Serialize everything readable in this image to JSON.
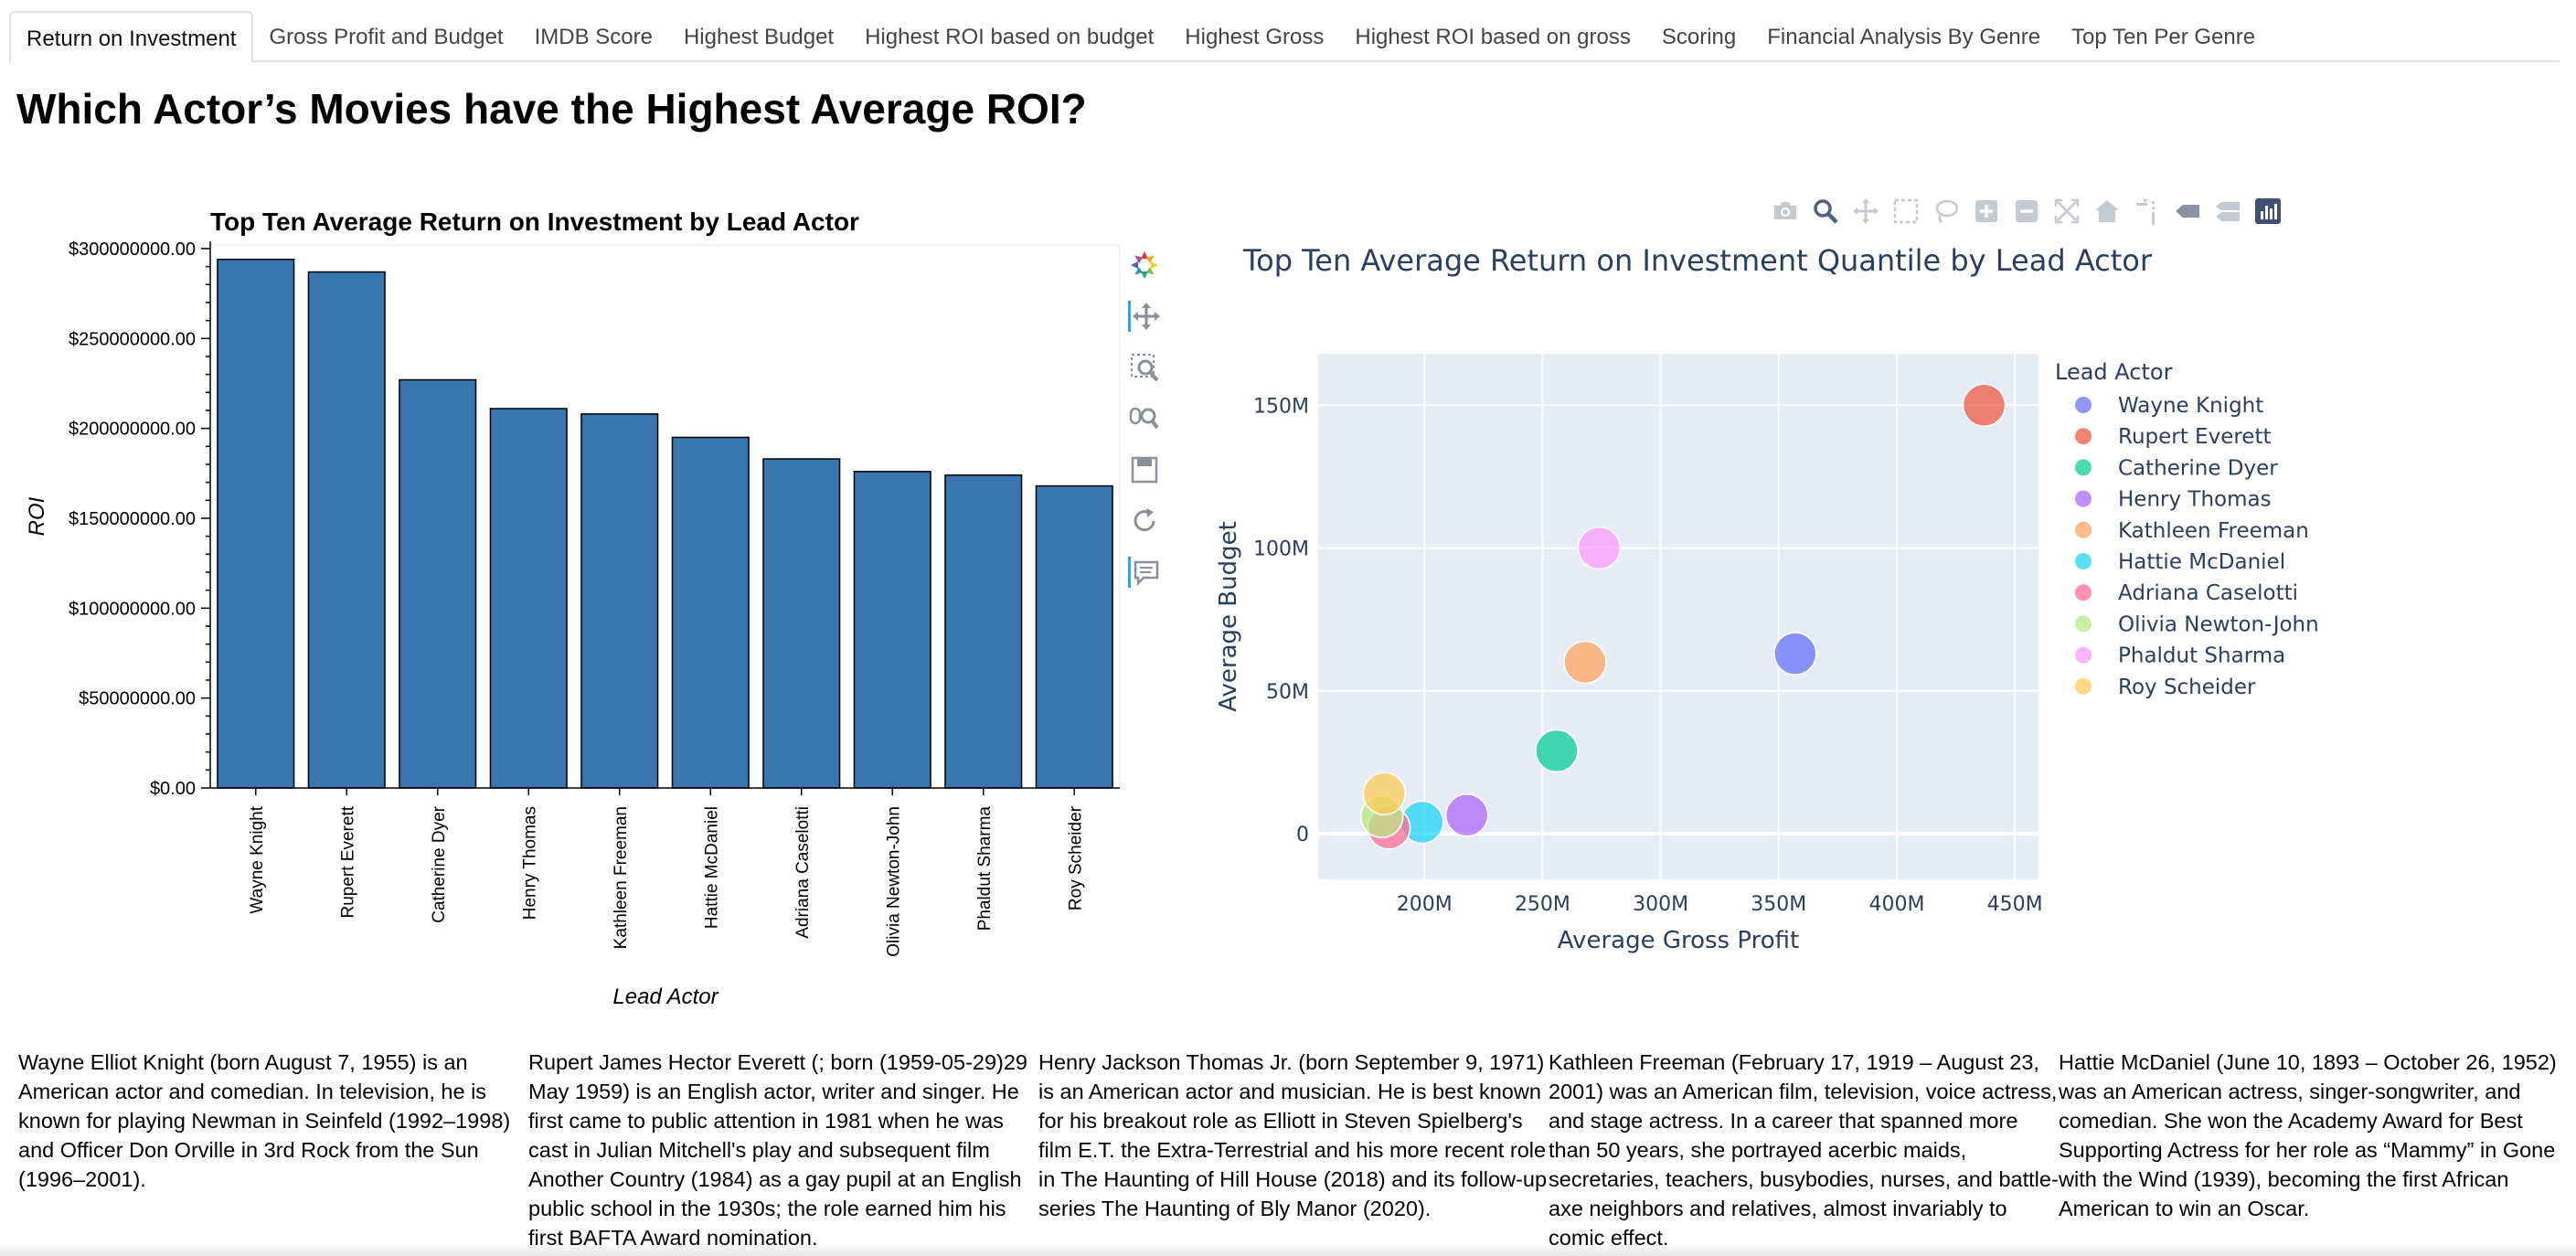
{
  "tabs": [
    {
      "label": "Return on Investment",
      "active": true
    },
    {
      "label": "Gross Profit and Budget",
      "active": false
    },
    {
      "label": "IMDB Score",
      "active": false
    },
    {
      "label": "Highest Budget",
      "active": false
    },
    {
      "label": "Highest ROI based on budget",
      "active": false
    },
    {
      "label": "Highest Gross",
      "active": false
    },
    {
      "label": "Highest ROI based on gross",
      "active": false
    },
    {
      "label": "Scoring",
      "active": false
    },
    {
      "label": "Financial Analysis By Genre",
      "active": false
    },
    {
      "label": "Top Ten Per Genre",
      "active": false
    }
  ],
  "page_title": "Which Actor’s Movies have the Highest Average ROI?",
  "bokeh_toolbar": [
    "bokeh-logo-icon",
    "pan-icon",
    "box-zoom-icon",
    "wheel-zoom-icon",
    "save-icon",
    "reset-icon",
    "hover-icon"
  ],
  "plotly_modebar": [
    "camera-icon",
    "zoom-icon",
    "pan-icon",
    "box-select-icon",
    "lasso-select-icon",
    "zoom-in-icon",
    "zoom-out-icon",
    "autoscale-icon",
    "reset-axes-icon",
    "toggle-spike-lines-icon",
    "show-closest-icon",
    "compare-data-icon",
    "plotly-logo-icon"
  ],
  "chart_data": [
    {
      "type": "bar",
      "title": "Top Ten Average Return on Investment by Lead Actor",
      "xlabel": "Lead Actor",
      "ylabel": "ROI",
      "categories": [
        "Wayne Knight",
        "Rupert Everett",
        "Catherine Dyer",
        "Henry Thomas",
        "Kathleen Freeman",
        "Hattie McDaniel",
        "Adriana Caselotti",
        "Olivia Newton-John",
        "Phaldut Sharma",
        "Roy Scheider"
      ],
      "values": [
        294000000,
        287000000,
        227000000,
        211000000,
        208000000,
        195000000,
        183000000,
        176000000,
        174000000,
        168000000
      ],
      "ylim": [
        0,
        302000000
      ],
      "yticks": [
        0,
        50000000,
        100000000,
        150000000,
        200000000,
        250000000,
        300000000
      ],
      "ytick_labels": [
        "$0.00",
        "$50000000.00",
        "$100000000.00",
        "$150000000.00",
        "$200000000.00",
        "$250000000.00",
        "$300000000.00"
      ],
      "color": "#3976af",
      "grid": false
    },
    {
      "type": "scatter",
      "title": "Top Ten Average Return on Investment Quantile by Lead Actor",
      "xlabel": "Average Gross Profit",
      "ylabel": "Average Budget",
      "xlim": [
        155000000,
        460000000
      ],
      "ylim": [
        -16000000,
        168000000
      ],
      "xticks": [
        200000000,
        250000000,
        300000000,
        350000000,
        400000000,
        450000000
      ],
      "xtick_labels": [
        "200M",
        "250M",
        "300M",
        "350M",
        "400M",
        "450M"
      ],
      "yticks": [
        0,
        50000000,
        100000000,
        150000000
      ],
      "ytick_labels": [
        "0",
        "50M",
        "100M",
        "150M"
      ],
      "legend_title": "Lead Actor",
      "legend_position": "right",
      "grid": true,
      "series": [
        {
          "name": "Wayne Knight",
          "color": "#636efa",
          "x": 357000000,
          "y": 63000000
        },
        {
          "name": "Rupert Everett",
          "color": "#ef553b",
          "x": 437000000,
          "y": 150000000
        },
        {
          "name": "Catherine Dyer",
          "color": "#00cc96",
          "x": 256000000,
          "y": 29000000
        },
        {
          "name": "Henry Thomas",
          "color": "#ab63fa",
          "x": 218000000,
          "y": 6500000
        },
        {
          "name": "Kathleen Freeman",
          "color": "#ffa15a",
          "x": 268000000,
          "y": 60000000
        },
        {
          "name": "Hattie McDaniel",
          "color": "#19d3f3",
          "x": 199000000,
          "y": 4000000
        },
        {
          "name": "Adriana Caselotti",
          "color": "#ff6692",
          "x": 185000000,
          "y": 2000000
        },
        {
          "name": "Olivia Newton-John",
          "color": "#b6e880",
          "x": 182000000,
          "y": 6000000
        },
        {
          "name": "Phaldut Sharma",
          "color": "#ff97ff",
          "x": 274000000,
          "y": 100000000
        },
        {
          "name": "Roy Scheider",
          "color": "#fecb52",
          "x": 183000000,
          "y": 14000000
        }
      ]
    }
  ],
  "bios": [
    "Wayne Elliot Knight (born August 7, 1955) is an American actor and comedian. In television, he is known for playing Newman in Seinfeld (1992–1998) and Officer Don Orville in 3rd Rock from the Sun (1996–2001).",
    "Rupert James Hector Everett (; born (1959-05-29)29 May 1959) is an English actor, writer and singer. He first came to public attention in 1981 when he was cast in Julian Mitchell's play and subsequent film Another Country (1984) as a gay pupil at an English public school in the 1930s; the role earned him his first BAFTA Award nomination.",
    "Henry Jackson Thomas Jr. (born September 9, 1971) is an American actor and musician. He is best known for his breakout role as Elliott in Steven Spielberg's film E.T. the Extra-Terrestrial and his more recent role in The Haunting of Hill House (2018) and its follow-up series The Haunting of Bly Manor (2020).",
    "Kathleen Freeman (February 17, 1919 – August 23, 2001) was an American film, television, voice actress, and stage actress. In a career that spanned more than 50 years, she portrayed acerbic maids, secretaries, teachers, busybodies, nurses, and battle-axe neighbors and relatives, almost invariably to comic effect.",
    "Hattie McDaniel (June 10, 1893 – October 26, 1952) was an American actress, singer-songwriter, and comedian. She won the Academy Award for Best Supporting Actress for her role as “Mammy” in Gone with the Wind (1939), becoming the first African American to win an Oscar."
  ]
}
